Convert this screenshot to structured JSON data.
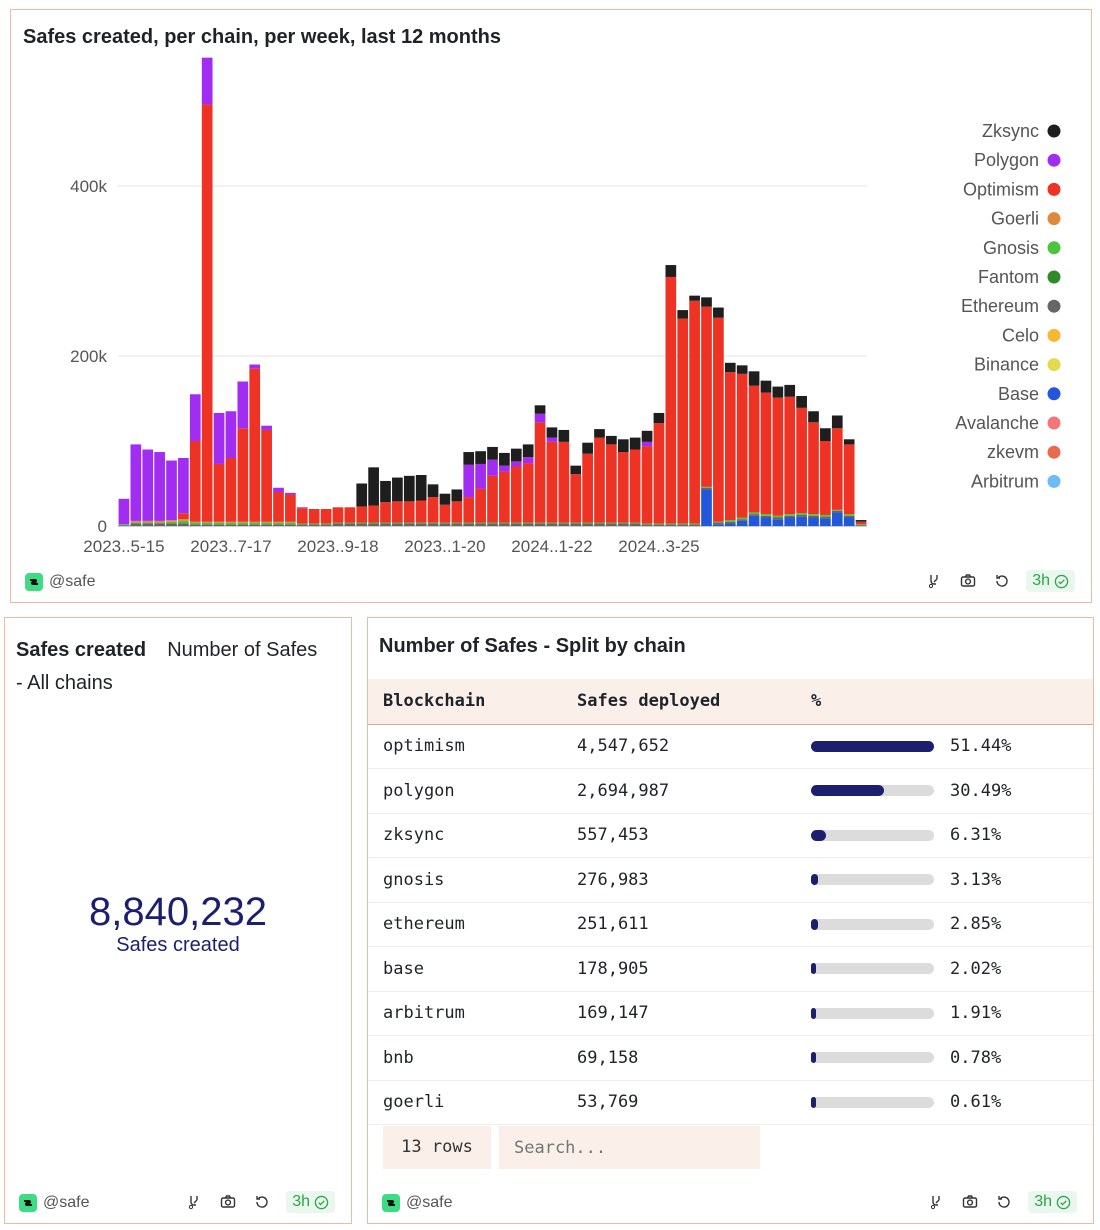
{
  "top_panel": {
    "title": "Safes created, per chain, per week, last 12 months",
    "author": "@safe",
    "age": "3h"
  },
  "chart_data": {
    "type": "bar",
    "stacked": true,
    "title": "Safes created, per chain, per week, last 12 months",
    "xlabel": "",
    "ylabel": "",
    "ylim": [
      0,
      560000
    ],
    "yticks": [
      0,
      200000,
      400000
    ],
    "ytick_labels": [
      "0",
      "200k",
      "400k"
    ],
    "xtick_labels": [
      "2023..5-15",
      "2023..7-17",
      "2023..9-18",
      "2023..1-20",
      "2024..1-22",
      "2024..3-25"
    ],
    "xtick_indices": [
      0,
      9,
      18,
      27,
      36,
      45
    ],
    "grid": true,
    "legend_position": "right",
    "colors": {
      "Zksync": "#1e1e1e",
      "Polygon": "#a12df2",
      "Optimism": "#ee3224",
      "Goerli": "#dd8a3e",
      "Gnosis": "#4cc43c",
      "Fantom": "#2e8b2a",
      "Ethereum": "#666666",
      "Celo": "#f7b733",
      "Binance": "#e4db4c",
      "Base": "#2157d8",
      "Avalanche": "#f27878",
      "zkevm": "#ea6a4c",
      "Arbitrum": "#6cbcf6"
    },
    "legend_order": [
      "Zksync",
      "Polygon",
      "Optimism",
      "Goerli",
      "Gnosis",
      "Fantom",
      "Ethereum",
      "Celo",
      "Binance",
      "Base",
      "Avalanche",
      "zkevm",
      "Arbitrum"
    ],
    "stack_order": [
      "Base",
      "Ethereum",
      "Fantom",
      "Gnosis",
      "Goerli",
      "Optimism",
      "Polygon",
      "Zksync"
    ],
    "series": [
      {
        "name": "Base",
        "values": [
          0,
          0,
          0,
          0,
          0,
          0,
          0,
          0,
          0,
          0,
          0,
          0,
          0,
          0,
          0,
          0,
          0,
          0,
          0,
          0,
          0,
          0,
          0,
          0,
          0,
          0,
          0,
          0,
          0,
          0,
          0,
          0,
          0,
          0,
          0,
          0,
          0,
          0,
          0,
          0,
          0,
          0,
          0,
          0,
          0,
          0,
          0,
          0,
          0,
          43000,
          2000,
          3000,
          6000,
          12000,
          10000,
          8000,
          10000,
          11000,
          10000,
          9000,
          16000,
          10000,
          0
        ]
      },
      {
        "name": "Ethereum",
        "values": [
          1000,
          3000,
          3000,
          3000,
          3000,
          3000,
          2000,
          2000,
          2000,
          2000,
          2000,
          2000,
          2000,
          2000,
          2000,
          2000,
          2000,
          2000,
          3000,
          3000,
          3000,
          3000,
          3000,
          3000,
          3000,
          3000,
          3000,
          3000,
          3000,
          3000,
          3000,
          3000,
          3000,
          3000,
          3000,
          3000,
          3000,
          3000,
          3000,
          3000,
          3000,
          3000,
          3000,
          3000,
          2000,
          2000,
          2000,
          2000,
          2000,
          2000,
          2000,
          2000,
          2000,
          2000,
          2000,
          2000,
          2000,
          2000,
          2000,
          2000,
          2000,
          2000,
          1000
        ]
      },
      {
        "name": "Fantom",
        "values": [
          0,
          0,
          0,
          0,
          0,
          0,
          0,
          0,
          0,
          0,
          0,
          0,
          0,
          0,
          0,
          0,
          0,
          0,
          0,
          0,
          0,
          0,
          0,
          0,
          0,
          0,
          0,
          0,
          0,
          0,
          0,
          0,
          0,
          0,
          0,
          0,
          0,
          0,
          0,
          0,
          0,
          0,
          0,
          0,
          0,
          0,
          0,
          0,
          0,
          0,
          0,
          0,
          0,
          0,
          0,
          0,
          0,
          0,
          0,
          0,
          0,
          0,
          0
        ]
      },
      {
        "name": "Gnosis",
        "values": [
          1000,
          1000,
          1000,
          1000,
          2000,
          3000,
          2000,
          2000,
          2000,
          2000,
          2000,
          2000,
          2000,
          2000,
          2000,
          1000,
          1000,
          1000,
          1000,
          1000,
          1000,
          1000,
          1000,
          1000,
          1000,
          1000,
          1000,
          1000,
          1000,
          1000,
          1000,
          1000,
          1000,
          1000,
          1000,
          1000,
          1000,
          1000,
          1000,
          1000,
          1000,
          1000,
          1000,
          1000,
          1000,
          1000,
          1000,
          1000,
          1000,
          1000,
          1000,
          2000,
          2000,
          2000,
          2000,
          2000,
          2000,
          2000,
          2000,
          2000,
          1000,
          2000,
          1000
        ]
      },
      {
        "name": "Goerli",
        "values": [
          0,
          2000,
          2000,
          2000,
          2000,
          2000,
          1000,
          1000,
          1000,
          1000,
          1000,
          1000,
          1000,
          1000,
          1000,
          0,
          0,
          0,
          0,
          0,
          0,
          0,
          0,
          0,
          0,
          0,
          0,
          0,
          0,
          0,
          0,
          0,
          0,
          0,
          0,
          0,
          0,
          0,
          0,
          0,
          0,
          0,
          0,
          0,
          0,
          0,
          0,
          0,
          0,
          0,
          0,
          0,
          0,
          0,
          0,
          0,
          0,
          0,
          0,
          0,
          0,
          0,
          0
        ]
      },
      {
        "name": "Optimism",
        "values": [
          0,
          0,
          0,
          0,
          0,
          7000,
          95000,
          491000,
          68000,
          75000,
          110000,
          180000,
          108000,
          35000,
          32000,
          18000,
          17000,
          17000,
          18000,
          18000,
          19000,
          20000,
          24000,
          25000,
          25000,
          26000,
          30000,
          21000,
          25000,
          30000,
          40000,
          55000,
          60000,
          66000,
          70000,
          118000,
          95000,
          95000,
          57000,
          81000,
          100000,
          92000,
          83000,
          86000,
          91000,
          118000,
          290000,
          241000,
          262000,
          212000,
          240000,
          174000,
          169000,
          149000,
          143000,
          139000,
          138000,
          124000,
          108000,
          87000,
          96000,
          82000,
          3000
        ]
      },
      {
        "name": "Polygon",
        "values": [
          30000,
          90000,
          84000,
          81000,
          70000,
          65000,
          55000,
          55000,
          60000,
          55000,
          55000,
          5000,
          5000,
          5000,
          2000,
          1000,
          0,
          0,
          0,
          0,
          0,
          0,
          0,
          0,
          0,
          0,
          0,
          0,
          0,
          38000,
          29000,
          19000,
          7000,
          6000,
          7000,
          10000,
          5000,
          0,
          0,
          0,
          0,
          0,
          0,
          0,
          5000,
          0,
          0,
          0,
          0,
          0,
          0,
          0,
          0,
          0,
          0,
          0,
          0,
          0,
          0,
          0,
          0,
          0,
          0
        ]
      },
      {
        "name": "Zksync",
        "values": [
          0,
          0,
          0,
          0,
          0,
          0,
          0,
          0,
          0,
          0,
          0,
          0,
          0,
          0,
          0,
          0,
          0,
          0,
          0,
          0,
          27000,
          45000,
          25000,
          28000,
          30000,
          30000,
          15000,
          13000,
          14000,
          15000,
          15000,
          15000,
          15000,
          15000,
          15000,
          10000,
          12000,
          14000,
          10000,
          13000,
          10000,
          10000,
          15000,
          14000,
          13000,
          12000,
          14000,
          10000,
          6000,
          11000,
          12000,
          11000,
          10000,
          17000,
          14000,
          13000,
          14000,
          14000,
          13000,
          15000,
          15000,
          6000,
          2000
        ]
      }
    ]
  },
  "kpi_panel": {
    "title": "Safes created",
    "subtitle_line1": "Number of Safes",
    "subtitle_line2": "- All chains",
    "value": "8,840,232",
    "label": "Safes created",
    "author": "@safe",
    "age": "3h"
  },
  "table_panel": {
    "title": "Number of Safes - Split by chain",
    "columns": [
      "Blockchain",
      "Safes deployed",
      "%"
    ],
    "rows": [
      {
        "chain": "optimism",
        "deployed": "4,547,652",
        "pct_label": "51.44%",
        "pct": 51.44
      },
      {
        "chain": "polygon",
        "deployed": "2,694,987",
        "pct_label": "30.49%",
        "pct": 30.49
      },
      {
        "chain": "zksync",
        "deployed": "557,453",
        "pct_label": "6.31%",
        "pct": 6.31
      },
      {
        "chain": "gnosis",
        "deployed": "276,983",
        "pct_label": "3.13%",
        "pct": 3.13
      },
      {
        "chain": "ethereum",
        "deployed": "251,611",
        "pct_label": "2.85%",
        "pct": 2.85
      },
      {
        "chain": "base",
        "deployed": "178,905",
        "pct_label": "2.02%",
        "pct": 2.02
      },
      {
        "chain": "arbitrum",
        "deployed": "169,147",
        "pct_label": "1.91%",
        "pct": 1.91
      },
      {
        "chain": "bnb",
        "deployed": "69,158",
        "pct_label": "0.78%",
        "pct": 0.78
      },
      {
        "chain": "goerli",
        "deployed": "53,769",
        "pct_label": "0.61%",
        "pct": 0.61
      }
    ],
    "rows_count": "13 rows",
    "search_placeholder": "Search...",
    "bar_max_pct": 51.44,
    "author": "@safe",
    "age": "3h"
  }
}
